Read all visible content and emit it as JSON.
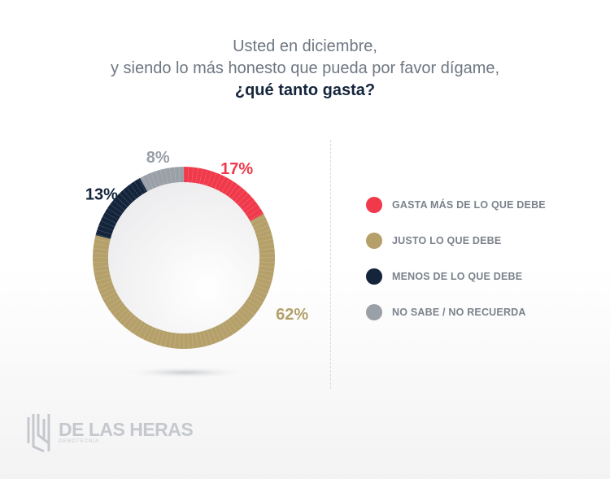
{
  "title": {
    "line1": "Usted en diciembre,",
    "line2": "y siendo lo más honesto que pueda por favor dígame,",
    "line3": "¿qué tanto gasta?"
  },
  "chart_data": {
    "type": "pie",
    "title": "Usted en diciembre, y siendo lo más honesto que pueda por favor dígame, ¿qué tanto gasta?",
    "categories": [
      "GASTA MÁS DE LO QUE DEBE",
      "JUSTO LO QUE DEBE",
      "MENOS DE LO QUE DEBE",
      "NO SABE / NO RECUERDA"
    ],
    "values": [
      17,
      62,
      13,
      8
    ],
    "labels": [
      "17%",
      "62%",
      "13%",
      "8%"
    ],
    "colors": [
      "#f03a4b",
      "#b5a06a",
      "#13243b",
      "#9aa0a8"
    ],
    "legend": "right"
  },
  "logo": {
    "name": "DE LAS HERAS",
    "sub": "DEMOTECNIA"
  }
}
